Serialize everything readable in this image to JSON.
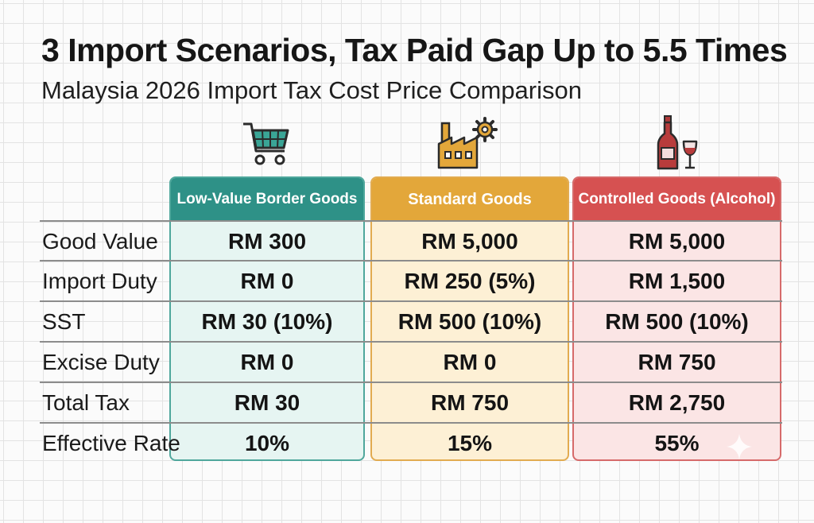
{
  "title": "3 Import Scenarios, Tax Paid Gap Up to 5.5 Times",
  "subtitle": "Malaysia 2026 Import Tax Cost Price Comparison",
  "icons": [
    "shopping-cart-icon",
    "factory-icon",
    "wine-bottle-glass-icon"
  ],
  "colors": {
    "low_value": "#2e9187",
    "standard": "#e3a73a",
    "controlled": "#d65151"
  },
  "columns": [
    "Low-Value Border Goods",
    "Standard Goods",
    "Controlled Goods (Alcohol)"
  ],
  "rows": [
    {
      "label": "Good Value",
      "values": [
        "RM 300",
        "RM 5,000",
        "RM 5,000"
      ]
    },
    {
      "label": "Import Duty",
      "values": [
        "RM 0",
        "RM 250 (5%)",
        "RM 1,500"
      ]
    },
    {
      "label": "SST",
      "values": [
        "RM 30 (10%)",
        "RM 500 (10%)",
        "RM 500 (10%)"
      ]
    },
    {
      "label": "Excise Duty",
      "values": [
        "RM 0",
        "RM 0",
        "RM 750"
      ]
    },
    {
      "label": "Total Tax",
      "values": [
        "RM 30",
        "RM 750",
        "RM 2,750"
      ]
    },
    {
      "label": "Effective Rate",
      "values": [
        "10%",
        "15%",
        "55%"
      ]
    }
  ]
}
